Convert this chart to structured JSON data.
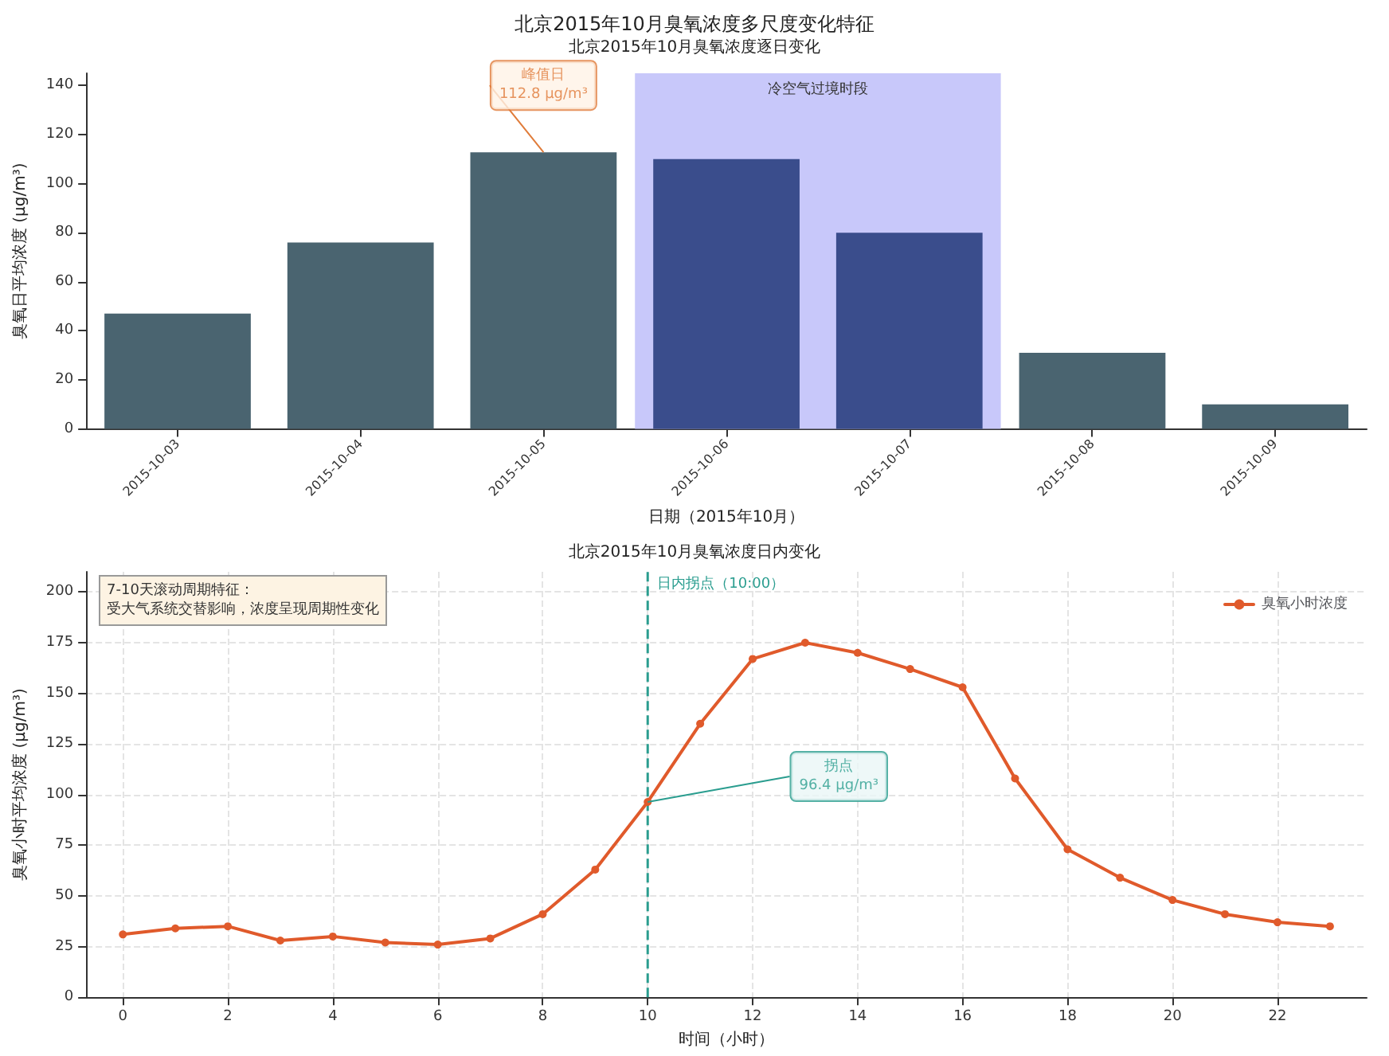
{
  "chart_data": [
    {
      "type": "bar",
      "title": "北京2015年10月臭氧浓度多尺度变化特征",
      "subtitle": "北京2015年10月臭氧浓度逐日变化",
      "xlabel": "日期（2015年10月）",
      "ylabel": "臭氧日平均浓度 (μg/m³)",
      "categories": [
        "2015-10-03",
        "2015-10-04",
        "2015-10-05",
        "2015-10-06",
        "2015-10-07",
        "2015-10-08",
        "2015-10-09"
      ],
      "values": [
        47,
        76,
        112.8,
        110,
        80,
        31,
        10
      ],
      "colors": [
        "#4a6470",
        "#4a6470",
        "#4a6470",
        "#3a4d8c",
        "#3a4d8c",
        "#4a6470",
        "#4a6470"
      ],
      "ylim": [
        0,
        145
      ],
      "yticks": [
        0,
        20,
        40,
        60,
        80,
        100,
        120,
        140
      ],
      "bands": [
        {
          "axis": "x",
          "from": "2015-10-06",
          "to": "2015-10-07",
          "label": "冷空气过境时段",
          "color": "#c8c8fa"
        }
      ],
      "annotations": [
        {
          "text": "峰值日\n112.8 μg/m³",
          "x": "2015-10-05",
          "y": 112.8
        }
      ],
      "grid": false
    },
    {
      "type": "line",
      "title": "北京2015年10月臭氧浓度日内变化",
      "xlabel": "时间（小时）",
      "ylabel": "臭氧小时平均浓度 (μg/m³)",
      "x": [
        0,
        1,
        2,
        3,
        4,
        5,
        6,
        7,
        8,
        9,
        10,
        11,
        12,
        13,
        14,
        15,
        16,
        17,
        18,
        19,
        20,
        21,
        22,
        23
      ],
      "series": [
        {
          "name": "臭氧小时浓度",
          "color": "#e05a2b",
          "values": [
            31,
            34,
            35,
            28,
            30,
            27,
            26,
            29,
            41,
            63,
            96.4,
            135,
            167,
            175,
            170,
            162,
            153,
            108,
            73,
            59,
            48,
            41,
            37,
            35
          ]
        }
      ],
      "xlim": [
        -0.7,
        23.7
      ],
      "xticks": [
        0,
        2,
        4,
        6,
        8,
        10,
        12,
        14,
        16,
        18,
        20,
        22
      ],
      "ylim": [
        0,
        210
      ],
      "yticks": [
        0,
        25,
        50,
        75,
        100,
        125,
        150,
        175,
        200
      ],
      "ref_lines": [
        {
          "axis": "x",
          "value": 10,
          "label": "日内拐点（10:00）",
          "color": "#2a9d8f",
          "line_style": "dashed"
        }
      ],
      "annotations": [
        "7-10天滚动周期特征：",
        "受大气系统交替影响，浓度呈现周期性变化",
        {
          "text": "拐点\n96.4 μg/m³",
          "x": 10,
          "y": 96.4
        }
      ],
      "legend": "top right",
      "grid": true,
      "marker": "circle",
      "line_style": "solid"
    }
  ]
}
